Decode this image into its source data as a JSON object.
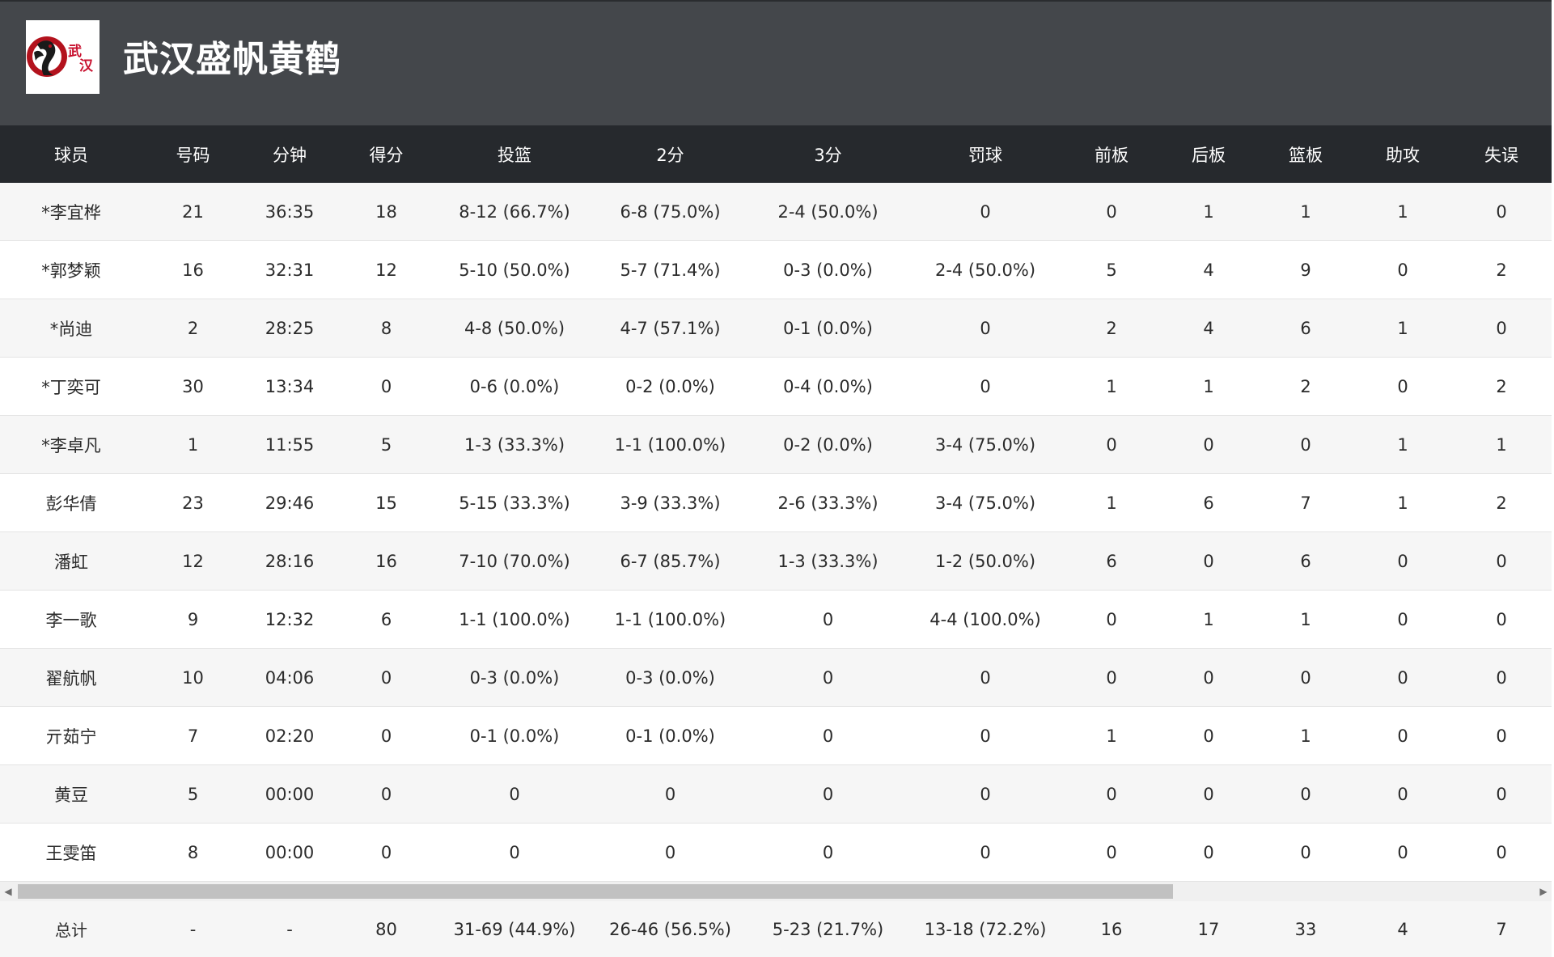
{
  "team": {
    "name": "武汉盛帆黄鹤",
    "logo_text": "武汉",
    "logo_icon": "crane-logo"
  },
  "columns": [
    "球员",
    "号码",
    "分钟",
    "得分",
    "投篮",
    "2分",
    "3分",
    "罚球",
    "前板",
    "后板",
    "篮板",
    "助攻",
    "失误"
  ],
  "players": [
    [
      "*李宜桦",
      "21",
      "36:35",
      "18",
      "8-12 (66.7%)",
      "6-8 (75.0%)",
      "2-4 (50.0%)",
      "0",
      "0",
      "1",
      "1",
      "1",
      "0"
    ],
    [
      "*郭梦颖",
      "16",
      "32:31",
      "12",
      "5-10 (50.0%)",
      "5-7 (71.4%)",
      "0-3 (0.0%)",
      "2-4 (50.0%)",
      "5",
      "4",
      "9",
      "0",
      "2"
    ],
    [
      "*尚迪",
      "2",
      "28:25",
      "8",
      "4-8 (50.0%)",
      "4-7 (57.1%)",
      "0-1 (0.0%)",
      "0",
      "2",
      "4",
      "6",
      "1",
      "0"
    ],
    [
      "*丁奕可",
      "30",
      "13:34",
      "0",
      "0-6 (0.0%)",
      "0-2 (0.0%)",
      "0-4 (0.0%)",
      "0",
      "1",
      "1",
      "2",
      "0",
      "2"
    ],
    [
      "*李卓凡",
      "1",
      "11:55",
      "5",
      "1-3 (33.3%)",
      "1-1 (100.0%)",
      "0-2 (0.0%)",
      "3-4 (75.0%)",
      "0",
      "0",
      "0",
      "1",
      "1"
    ],
    [
      "彭华倩",
      "23",
      "29:46",
      "15",
      "5-15 (33.3%)",
      "3-9 (33.3%)",
      "2-6 (33.3%)",
      "3-4 (75.0%)",
      "1",
      "6",
      "7",
      "1",
      "2"
    ],
    [
      "潘虹",
      "12",
      "28:16",
      "16",
      "7-10 (70.0%)",
      "6-7 (85.7%)",
      "1-3 (33.3%)",
      "1-2 (50.0%)",
      "6",
      "0",
      "6",
      "0",
      "0"
    ],
    [
      "李一歌",
      "9",
      "12:32",
      "6",
      "1-1 (100.0%)",
      "1-1 (100.0%)",
      "0",
      "4-4 (100.0%)",
      "0",
      "1",
      "1",
      "0",
      "0"
    ],
    [
      "翟航帆",
      "10",
      "04:06",
      "0",
      "0-3 (0.0%)",
      "0-3 (0.0%)",
      "0",
      "0",
      "0",
      "0",
      "0",
      "0",
      "0"
    ],
    [
      "亓茹宁",
      "7",
      "02:20",
      "0",
      "0-1 (0.0%)",
      "0-1 (0.0%)",
      "0",
      "0",
      "1",
      "0",
      "1",
      "0",
      "0"
    ],
    [
      "黄豆",
      "5",
      "00:00",
      "0",
      "0",
      "0",
      "0",
      "0",
      "0",
      "0",
      "0",
      "0",
      "0"
    ],
    [
      "王雯笛",
      "8",
      "00:00",
      "0",
      "0",
      "0",
      "0",
      "0",
      "0",
      "0",
      "0",
      "0",
      "0"
    ]
  ],
  "totals": [
    "总计",
    "-",
    "-",
    "80",
    "31-69 (44.9%)",
    "26-46 (56.5%)",
    "5-23 (21.7%)",
    "13-18 (72.2%)",
    "16",
    "17",
    "33",
    "4",
    "7"
  ],
  "scrollbar": {
    "left_arrow": "◀",
    "right_arrow": "▶"
  }
}
